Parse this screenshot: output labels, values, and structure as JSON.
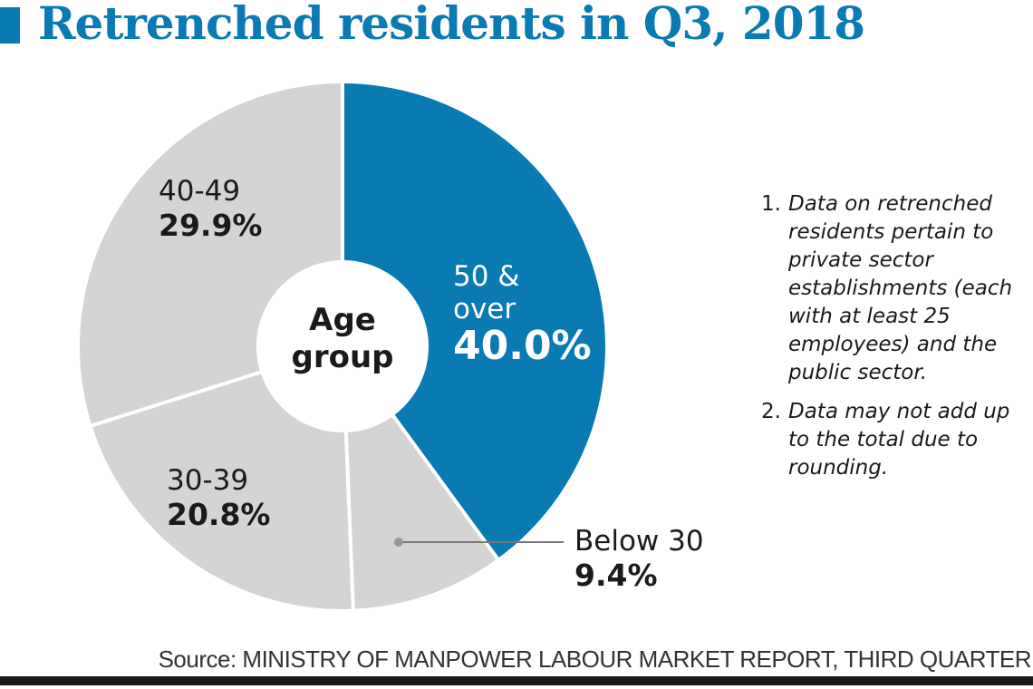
{
  "header": {
    "title": "Retrenched residents in Q3, 2018"
  },
  "colors": {
    "accent": "#0a7ab3",
    "slice_grey": "#d4d4d4",
    "separator": "#ffffff",
    "leader": "#777777"
  },
  "chart_data": {
    "type": "pie",
    "title": "Retrenched residents in Q3, 2018",
    "center_label": [
      "Age",
      "group"
    ],
    "unit": "%",
    "start": "top (12 o'clock)",
    "direction": "clockwise",
    "donut": true,
    "slices": [
      {
        "label": "50 & over",
        "value": 40.0,
        "display": "40.0%",
        "highlight": true
      },
      {
        "label": "Below 30",
        "value": 9.4,
        "display": "9.4%",
        "highlight": false
      },
      {
        "label": "30-39",
        "value": 20.8,
        "display": "20.8%",
        "highlight": false
      },
      {
        "label": "40-49",
        "value": 29.9,
        "display": "29.9%",
        "highlight": false
      }
    ]
  },
  "labels": {
    "s50": {
      "line1": "50 &",
      "line2": "over",
      "pct": "40.0%"
    },
    "below30": {
      "name": "Below 30",
      "pct": "9.4%"
    },
    "s30": {
      "name": "30-39",
      "pct": "20.8%"
    },
    "s40": {
      "name": "40-49",
      "pct": "29.9%"
    },
    "center": {
      "line1": "Age",
      "line2": "group"
    }
  },
  "notes": [
    {
      "num": "1.",
      "text": "Data on retrenched residents pertain to private sector establishments (each with at least 25 employees) and the public sector."
    },
    {
      "num": "2.",
      "text": "Data may not add up to the total due to rounding."
    }
  ],
  "source": "Source: MINISTRY OF MANPOWER LABOUR MARKET REPORT, THIRD QUARTER"
}
